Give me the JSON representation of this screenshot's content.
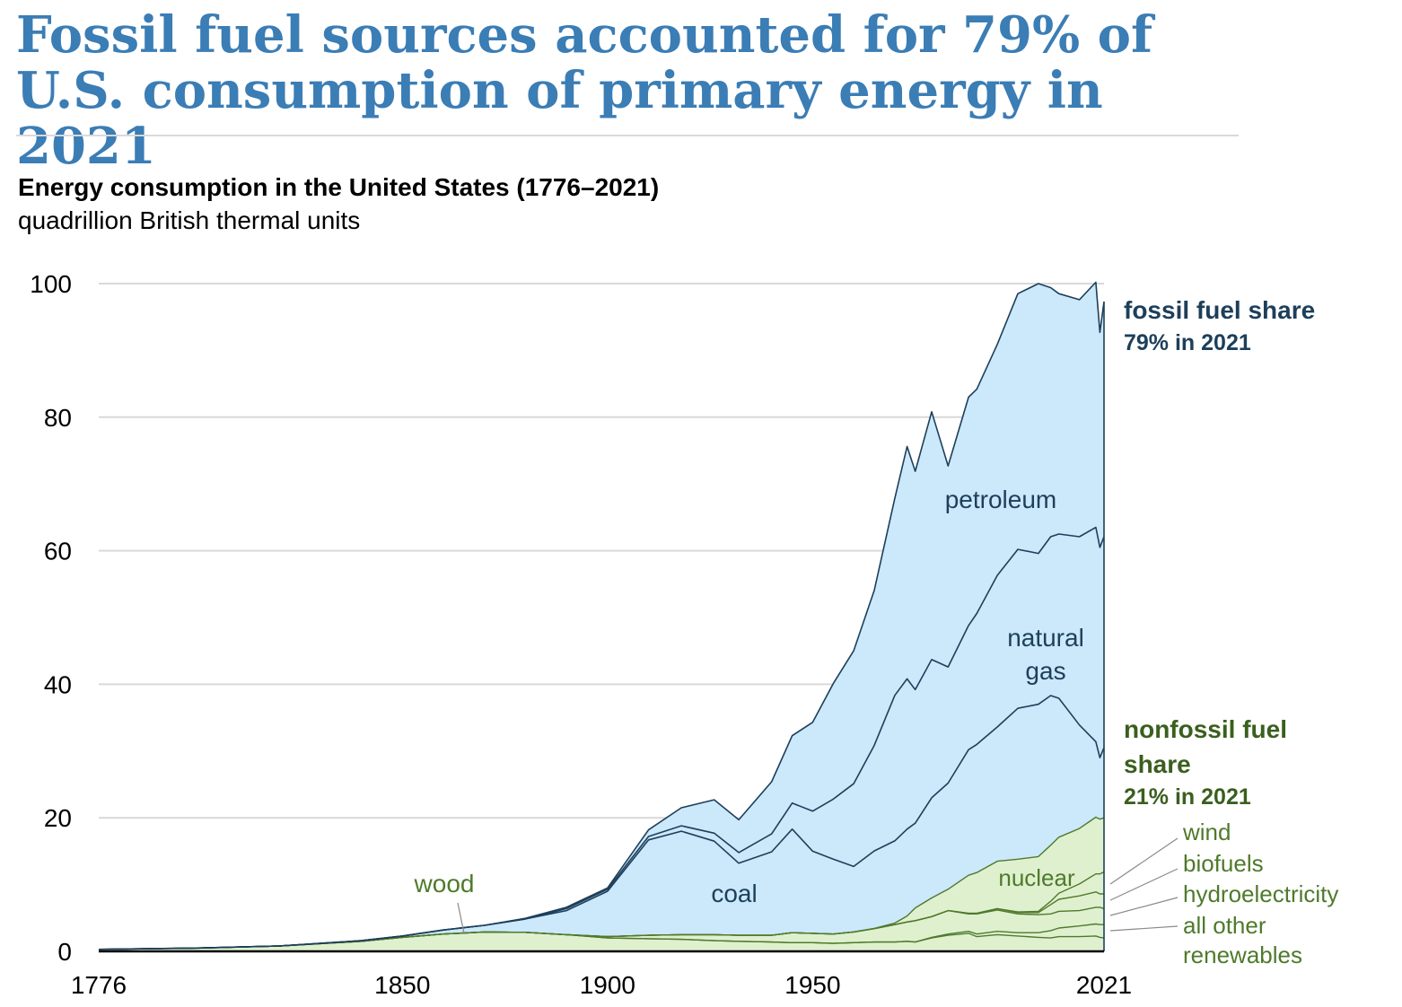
{
  "page": {
    "headline": "Fossil fuel sources accounted for 79% of U.S. consumption of primary energy in 2021"
  },
  "chart_data": {
    "type": "area",
    "stacked": true,
    "title": "Energy consumption in the United States (1776–2021)",
    "units": "quadrillion British thermal units",
    "xlabel": "",
    "ylabel": "",
    "xlim": [
      1776,
      2021
    ],
    "ylim": [
      0,
      100
    ],
    "y_ticks": [
      0,
      20,
      40,
      60,
      80,
      100
    ],
    "x_ticks": [
      "1776",
      "1850",
      "1900",
      "1950",
      "2021"
    ],
    "grid": "horizontal",
    "x": [
      1776,
      1800,
      1820,
      1840,
      1850,
      1860,
      1870,
      1880,
      1890,
      1900,
      1910,
      1918,
      1926,
      1932,
      1940,
      1945,
      1950,
      1955,
      1960,
      1965,
      1970,
      1973,
      1975,
      1979,
      1983,
      1988,
      1990,
      1995,
      2000,
      2005,
      2008,
      2010,
      2015,
      2019,
      2020,
      2021
    ],
    "series": [
      {
        "name": "wood",
        "color": "#dff0cf",
        "values": [
          0.3,
          0.5,
          0.8,
          1.5,
          2.1,
          2.6,
          2.9,
          2.85,
          2.5,
          2.0,
          1.9,
          1.8,
          1.6,
          1.5,
          1.4,
          1.3,
          1.3,
          1.2,
          1.3,
          1.4,
          1.4,
          1.5,
          1.4,
          2.0,
          2.4,
          2.7,
          2.2,
          2.5,
          2.3,
          2.1,
          2.0,
          2.2,
          2.2,
          2.3,
          2.1,
          2.0
        ]
      },
      {
        "name": "all other renewables",
        "color": "#dff0cf",
        "values": [
          0,
          0,
          0,
          0,
          0,
          0,
          0,
          0,
          0,
          0,
          0,
          0,
          0,
          0,
          0,
          0,
          0,
          0,
          0,
          0,
          0,
          0,
          0,
          0.1,
          0.2,
          0.3,
          0.4,
          0.5,
          0.5,
          0.7,
          1.1,
          1.3,
          1.6,
          1.8,
          1.9,
          2.0
        ]
      },
      {
        "name": "hydroelectricity",
        "color": "#dff0cf",
        "values": [
          0,
          0,
          0,
          0,
          0,
          0,
          0,
          0,
          0,
          0.2,
          0.5,
          0.7,
          0.9,
          0.9,
          1.0,
          1.5,
          1.4,
          1.4,
          1.6,
          2.0,
          2.6,
          2.9,
          3.2,
          3.1,
          3.5,
          2.6,
          3.0,
          3.2,
          2.8,
          2.7,
          2.5,
          2.5,
          2.3,
          2.5,
          2.6,
          2.4
        ]
      },
      {
        "name": "biofuels",
        "color": "#dff0cf",
        "values": [
          0,
          0,
          0,
          0,
          0,
          0,
          0,
          0,
          0,
          0,
          0,
          0,
          0,
          0,
          0,
          0,
          0,
          0,
          0,
          0,
          0,
          0,
          0,
          0,
          0,
          0.1,
          0.1,
          0.2,
          0.2,
          0.3,
          1.4,
          1.8,
          2.2,
          2.3,
          2.0,
          2.2
        ]
      },
      {
        "name": "wind",
        "color": "#dff0cf",
        "values": [
          0,
          0,
          0,
          0,
          0,
          0,
          0,
          0,
          0,
          0,
          0,
          0,
          0,
          0,
          0,
          0,
          0,
          0,
          0,
          0,
          0,
          0,
          0,
          0,
          0,
          0,
          0,
          0,
          0.1,
          0.2,
          0.5,
          0.9,
          1.8,
          2.7,
          3.0,
          3.3
        ]
      },
      {
        "name": "nuclear",
        "color": "#dff0cf",
        "values": [
          0,
          0,
          0,
          0,
          0,
          0,
          0,
          0,
          0,
          0,
          0,
          0,
          0,
          0,
          0,
          0,
          0,
          0,
          0.01,
          0.04,
          0.24,
          0.9,
          1.9,
          2.8,
          3.2,
          5.7,
          6.1,
          7.1,
          7.9,
          8.2,
          8.4,
          8.4,
          8.3,
          8.5,
          8.2,
          8.1
        ]
      },
      {
        "name": "coal",
        "color": "#cce8fb",
        "values": [
          0,
          0,
          0,
          0.1,
          0.2,
          0.6,
          1.0,
          2.0,
          3.6,
          6.8,
          14.3,
          15.5,
          14.0,
          10.8,
          12.5,
          15.5,
          12.3,
          11.2,
          9.8,
          11.6,
          12.3,
          13.0,
          12.7,
          15.0,
          15.9,
          18.8,
          19.2,
          20.1,
          22.6,
          22.8,
          22.4,
          20.8,
          15.5,
          11.3,
          9.2,
          10.5
        ]
      },
      {
        "name": "natural gas",
        "color": "#cce8fb",
        "values": [
          0,
          0,
          0,
          0,
          0,
          0,
          0,
          0,
          0.3,
          0.3,
          0.5,
          0.8,
          1.2,
          1.6,
          2.7,
          3.9,
          6.0,
          9.0,
          12.4,
          15.8,
          21.8,
          22.5,
          20.0,
          20.7,
          17.4,
          18.6,
          19.6,
          22.7,
          23.8,
          22.6,
          23.8,
          24.6,
          28.2,
          32.1,
          31.5,
          31.6
        ]
      },
      {
        "name": "petroleum",
        "color": "#cce8fb",
        "values": [
          0,
          0,
          0,
          0,
          0,
          0,
          0,
          0.1,
          0.2,
          0.2,
          1.0,
          2.7,
          5.0,
          4.9,
          7.8,
          10.1,
          13.3,
          17.3,
          19.9,
          23.2,
          29.5,
          34.8,
          32.7,
          37.1,
          30.1,
          34.2,
          33.6,
          34.6,
          38.3,
          40.4,
          37.3,
          36.0,
          35.5,
          36.7,
          32.2,
          35.2
        ]
      }
    ],
    "annotations": [
      {
        "id": "fossil-line1",
        "text": "fossil fuel share"
      },
      {
        "id": "fossil-line2",
        "text": "79% in 2021"
      },
      {
        "id": "nonfossil-line1",
        "text": "nonfossil fuel"
      },
      {
        "id": "nonfossil-line2",
        "text": "share"
      },
      {
        "id": "nonfossil-line3",
        "text": "21% in 2021"
      },
      {
        "id": "label-petroleum",
        "text": "petroleum"
      },
      {
        "id": "label-natural1",
        "text": "natural"
      },
      {
        "id": "label-natural2",
        "text": "gas"
      },
      {
        "id": "label-coal",
        "text": "coal"
      },
      {
        "id": "label-nuclear",
        "text": "nuclear"
      },
      {
        "id": "label-wood",
        "text": "wood"
      },
      {
        "id": "label-wind",
        "text": "wind"
      },
      {
        "id": "label-biofuels",
        "text": "biofuels"
      },
      {
        "id": "label-hydro",
        "text": "hydroelectricity"
      },
      {
        "id": "label-other1",
        "text": "all other"
      },
      {
        "id": "label-other2",
        "text": "renewables"
      }
    ]
  },
  "colors": {
    "headline": "#3b7db5",
    "fossil_fill": "#cce8fb",
    "fossil_line": "#1d3f5a",
    "fossil_label": "#1d3f5a",
    "nonfossil_fill": "#dff0cf",
    "nonfossil_line": "#4f7a2b",
    "nonfossil_label": "#3a5f1e",
    "grid": "#d9d9d9"
  }
}
